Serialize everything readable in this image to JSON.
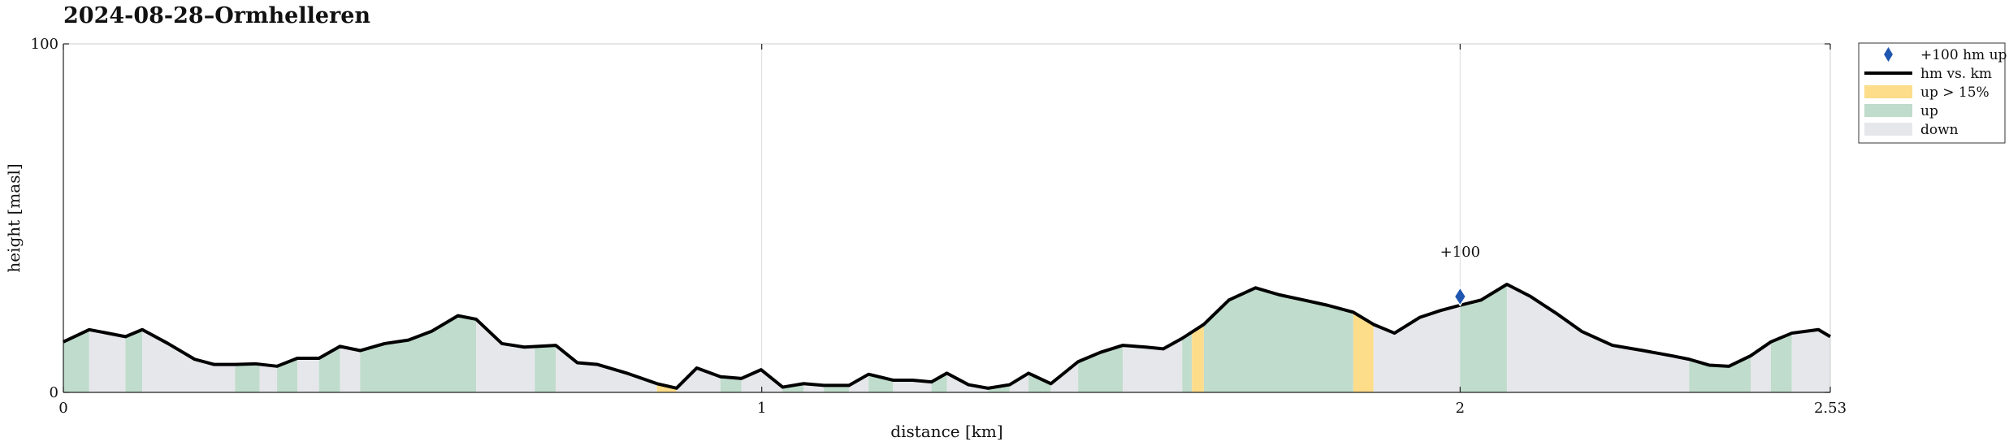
{
  "chart_data": {
    "type": "area",
    "title": "2024-08-28–Ormhelleren",
    "xlabel": "distance [km]",
    "ylabel": "height [masl]",
    "xlim": [
      0,
      2.53
    ],
    "ylim": [
      0,
      100
    ],
    "xticks": [
      0,
      1,
      2,
      2.53
    ],
    "xtick_labels": [
      "0",
      "1",
      "2",
      "2.53"
    ],
    "yticks": [
      0,
      100
    ],
    "ytick_labels": [
      "0",
      "100"
    ],
    "grid": true,
    "legend_position": "outside-top-right",
    "colors": {
      "line": "#000000",
      "up_steep": "#fddc8a",
      "up": "#c0dccc",
      "down": "#e6e7eb",
      "marker": "#1f56b0",
      "grid": "#dddddd"
    },
    "legend": [
      {
        "key": "marker",
        "label": "+100 hm up"
      },
      {
        "key": "line",
        "label": "hm vs. km"
      },
      {
        "key": "up_steep",
        "label": "up > 15%"
      },
      {
        "key": "up",
        "label": "up"
      },
      {
        "key": "down",
        "label": "down"
      }
    ],
    "x": [
      0,
      0.037,
      0.089,
      0.113,
      0.15,
      0.188,
      0.216,
      0.246,
      0.275,
      0.306,
      0.335,
      0.366,
      0.396,
      0.425,
      0.46,
      0.494,
      0.527,
      0.565,
      0.591,
      0.628,
      0.66,
      0.705,
      0.736,
      0.765,
      0.807,
      0.85,
      0.878,
      0.907,
      0.941,
      0.971,
      0.999,
      1.03,
      1.06,
      1.089,
      1.125,
      1.153,
      1.188,
      1.216,
      1.243,
      1.265,
      1.296,
      1.324,
      1.355,
      1.382,
      1.414,
      1.453,
      1.485,
      1.517,
      1.55,
      1.575,
      1.602,
      1.633,
      1.669,
      1.707,
      1.741,
      1.776,
      1.81,
      1.847,
      1.876,
      1.906,
      1.942,
      1.972,
      2.0,
      2.03,
      2.067,
      2.101,
      2.139,
      2.174,
      2.218,
      2.262,
      2.303,
      2.328,
      2.357,
      2.385,
      2.416,
      2.445,
      2.475,
      2.513,
      2.53
    ],
    "y": [
      14.5,
      18,
      16,
      18,
      14,
      9.5,
      8,
      8,
      8.2,
      7.5,
      9.8,
      9.8,
      13.2,
      12,
      14,
      15,
      17.5,
      22,
      21,
      14,
      13,
      13.5,
      8.5,
      8,
      5.5,
      2.5,
      1.2,
      7,
      4.5,
      4,
      6.5,
      1.5,
      2.5,
      2,
      2,
      5.2,
      3.5,
      3.5,
      3,
      5.5,
      2.2,
      1.2,
      2.2,
      5.5,
      2.5,
      8.8,
      11.5,
      13.5,
      13,
      12.5,
      15.5,
      19.5,
      26.5,
      30,
      28,
      26.5,
      25,
      23,
      19.5,
      17,
      21.5,
      23.5,
      25,
      26.5,
      31,
      27.5,
      22.5,
      17.5,
      13.5,
      12,
      10.5,
      9.5,
      7.8,
      7.5,
      10.5,
      14.5,
      17,
      18,
      16
    ],
    "segments": [
      {
        "x": [
          0,
          0.037
        ],
        "class": "up"
      },
      {
        "x": [
          0.037,
          0.089
        ],
        "class": "down"
      },
      {
        "x": [
          0.089,
          0.113
        ],
        "class": "up"
      },
      {
        "x": [
          0.113,
          0.246
        ],
        "class": "down"
      },
      {
        "x": [
          0.246,
          0.281
        ],
        "class": "up"
      },
      {
        "x": [
          0.281,
          0.306
        ],
        "class": "down"
      },
      {
        "x": [
          0.306,
          0.335
        ],
        "class": "up"
      },
      {
        "x": [
          0.335,
          0.366
        ],
        "class": "down"
      },
      {
        "x": [
          0.366,
          0.396
        ],
        "class": "up"
      },
      {
        "x": [
          0.396,
          0.425
        ],
        "class": "down"
      },
      {
        "x": [
          0.425,
          0.591
        ],
        "class": "up"
      },
      {
        "x": [
          0.591,
          0.675
        ],
        "class": "down"
      },
      {
        "x": [
          0.675,
          0.705
        ],
        "class": "up"
      },
      {
        "x": [
          0.705,
          0.85
        ],
        "class": "down"
      },
      {
        "x": [
          0.85,
          0.878
        ],
        "class": "up_steep"
      },
      {
        "x": [
          0.878,
          0.941
        ],
        "class": "down"
      },
      {
        "x": [
          0.941,
          0.971
        ],
        "class": "up"
      },
      {
        "x": [
          0.971,
          1.03
        ],
        "class": "down"
      },
      {
        "x": [
          1.03,
          1.06
        ],
        "class": "up"
      },
      {
        "x": [
          1.06,
          1.089
        ],
        "class": "down"
      },
      {
        "x": [
          1.089,
          1.125
        ],
        "class": "up"
      },
      {
        "x": [
          1.125,
          1.153
        ],
        "class": "down"
      },
      {
        "x": [
          1.153,
          1.188
        ],
        "class": "up"
      },
      {
        "x": [
          1.188,
          1.243
        ],
        "class": "down"
      },
      {
        "x": [
          1.243,
          1.265
        ],
        "class": "up"
      },
      {
        "x": [
          1.265,
          1.324
        ],
        "class": "down"
      },
      {
        "x": [
          1.324,
          1.355
        ],
        "class": "up"
      },
      {
        "x": [
          1.355,
          1.382
        ],
        "class": "down"
      },
      {
        "x": [
          1.382,
          1.414
        ],
        "class": "up"
      },
      {
        "x": [
          1.414,
          1.453
        ],
        "class": "down"
      },
      {
        "x": [
          1.453,
          1.517
        ],
        "class": "up"
      },
      {
        "x": [
          1.517,
          1.602
        ],
        "class": "down"
      },
      {
        "x": [
          1.602,
          1.616
        ],
        "class": "up"
      },
      {
        "x": [
          1.616,
          1.633
        ],
        "class": "up_steep"
      },
      {
        "x": [
          1.633,
          1.847
        ],
        "class": "up"
      },
      {
        "x": [
          1.847,
          1.876
        ],
        "class": "up_steep"
      },
      {
        "x": [
          1.876,
          2.0
        ],
        "class": "down"
      },
      {
        "x": [
          2.0,
          2.067
        ],
        "class": "up"
      },
      {
        "x": [
          2.067,
          2.328
        ],
        "class": "down"
      },
      {
        "x": [
          2.328,
          2.416
        ],
        "class": "up"
      },
      {
        "x": [
          2.416,
          2.445
        ],
        "class": "down"
      },
      {
        "x": [
          2.445,
          2.475
        ],
        "class": "up"
      },
      {
        "x": [
          2.475,
          2.53
        ],
        "class": "down"
      }
    ],
    "markers": [
      {
        "x": 2.0,
        "y": 27.5,
        "label": "+100"
      }
    ]
  }
}
